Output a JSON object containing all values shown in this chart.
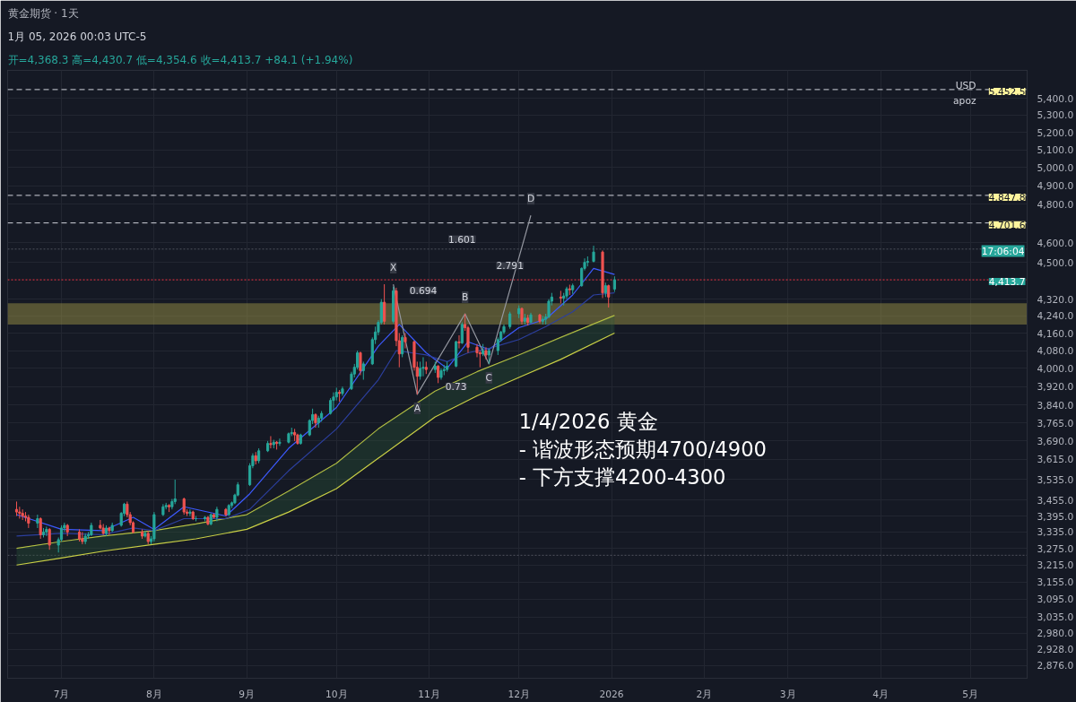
{
  "chart_data": {
    "type": "candlestick",
    "title": "黄金期货 · 1天",
    "subtitle": "开=4,368.3 高=4,430.7 低=4,354.6 收=4,413.7 +84.1 (+1.94%)",
    "annotations": [
      "1月 05, 2026 00:03 UTC-5",
      "USD",
      "apoz",
      "17:06:04",
      "1/4/2026 黄金\n- 谐波形态预期4700/4900\n- 下方支撑4200-4300",
      "1.601",
      "2.791",
      "0.694",
      "0.73",
      {
        "text": "X",
        "x": "2025-10-20",
        "y": 4392
      },
      {
        "text": "A",
        "x": "2025-10-28",
        "y": 3886
      },
      {
        "text": "B",
        "x": "2025-11-13",
        "y": 4250
      },
      {
        "text": "C",
        "x": "2025-11-21",
        "y": 4020
      },
      {
        "text": "D",
        "x": "2025-12-05",
        "y": 4741
      }
    ],
    "x": [
      "2025-06-16",
      "2025-06-17",
      "2025-06-18",
      "2025-06-19",
      "2025-06-20",
      "2025-06-23",
      "2025-06-24",
      "2025-06-25",
      "2025-06-26",
      "2025-06-27",
      "2025-06-30",
      "2025-07-01",
      "2025-07-02",
      "2025-07-03",
      "2025-07-07",
      "2025-07-08",
      "2025-07-09",
      "2025-07-10",
      "2025-07-11",
      "2025-07-14",
      "2025-07-15",
      "2025-07-16",
      "2025-07-17",
      "2025-07-18",
      "2025-07-21",
      "2025-07-22",
      "2025-07-23",
      "2025-07-24",
      "2025-07-25",
      "2025-07-28",
      "2025-07-29",
      "2025-07-30",
      "2025-07-31",
      "2025-08-01",
      "2025-08-04",
      "2025-08-05",
      "2025-08-06",
      "2025-08-07",
      "2025-08-08",
      "2025-08-11",
      "2025-08-12",
      "2025-08-13",
      "2025-08-14",
      "2025-08-15",
      "2025-08-18",
      "2025-08-19",
      "2025-08-20",
      "2025-08-21",
      "2025-08-22",
      "2025-08-25",
      "2025-08-26",
      "2025-08-27",
      "2025-08-28",
      "2025-08-29",
      "2025-09-02",
      "2025-09-03",
      "2025-09-04",
      "2025-09-05",
      "2025-09-08",
      "2025-09-09",
      "2025-09-10",
      "2025-09-11",
      "2025-09-12",
      "2025-09-15",
      "2025-09-16",
      "2025-09-17",
      "2025-09-18",
      "2025-09-19",
      "2025-09-22",
      "2025-09-23",
      "2025-09-24",
      "2025-09-25",
      "2025-09-26",
      "2025-09-29",
      "2025-09-30",
      "2025-10-01",
      "2025-10-02",
      "2025-10-03",
      "2025-10-06",
      "2025-10-07",
      "2025-10-08",
      "2025-10-09",
      "2025-10-10",
      "2025-10-13",
      "2025-10-14",
      "2025-10-15",
      "2025-10-16",
      "2025-10-17",
      "2025-10-20",
      "2025-10-21",
      "2025-10-22",
      "2025-10-23",
      "2025-10-24",
      "2025-10-27",
      "2025-10-28",
      "2025-10-29",
      "2025-10-30",
      "2025-10-31",
      "2025-11-03",
      "2025-11-04",
      "2025-11-05",
      "2025-11-06",
      "2025-11-07",
      "2025-11-10",
      "2025-11-11",
      "2025-11-12",
      "2025-11-13",
      "2025-11-14",
      "2025-11-17",
      "2025-11-18",
      "2025-11-19",
      "2025-11-20",
      "2025-11-21",
      "2025-11-24",
      "2025-11-25",
      "2025-11-26",
      "2025-11-28",
      "2025-12-01",
      "2025-12-02",
      "2025-12-03",
      "2025-12-04",
      "2025-12-05",
      "2025-12-08",
      "2025-12-09",
      "2025-12-10",
      "2025-12-11",
      "2025-12-12",
      "2025-12-15",
      "2025-12-16",
      "2025-12-17",
      "2025-12-18",
      "2025-12-19",
      "2025-12-22",
      "2025-12-23",
      "2025-12-24",
      "2025-12-26",
      "2025-12-29",
      "2025-12-30",
      "2025-12-31",
      "2026-01-02"
    ],
    "ohlc": [
      [
        3420,
        3450,
        3395,
        3410
      ],
      [
        3410,
        3430,
        3385,
        3405
      ],
      [
        3405,
        3420,
        3380,
        3395
      ],
      [
        3395,
        3410,
        3375,
        3390
      ],
      [
        3390,
        3400,
        3350,
        3368
      ],
      [
        3368,
        3400,
        3350,
        3385
      ],
      [
        3385,
        3390,
        3310,
        3325
      ],
      [
        3325,
        3350,
        3315,
        3335
      ],
      [
        3335,
        3355,
        3320,
        3345
      ],
      [
        3345,
        3350,
        3270,
        3287
      ],
      [
        3287,
        3315,
        3260,
        3307
      ],
      [
        3307,
        3360,
        3300,
        3350
      ],
      [
        3350,
        3370,
        3335,
        3360
      ],
      [
        3360,
        3365,
        3320,
        3335
      ],
      [
        3335,
        3345,
        3300,
        3310
      ],
      [
        3310,
        3335,
        3290,
        3300
      ],
      [
        3300,
        3330,
        3290,
        3320
      ],
      [
        3320,
        3335,
        3310,
        3325
      ],
      [
        3325,
        3370,
        3320,
        3360
      ],
      [
        3360,
        3380,
        3345,
        3350
      ],
      [
        3350,
        3365,
        3325,
        3330
      ],
      [
        3330,
        3360,
        3320,
        3350
      ],
      [
        3350,
        3355,
        3325,
        3340
      ],
      [
        3340,
        3370,
        3335,
        3360
      ],
      [
        3360,
        3410,
        3355,
        3405
      ],
      [
        3405,
        3445,
        3395,
        3440
      ],
      [
        3440,
        3450,
        3390,
        3400
      ],
      [
        3400,
        3410,
        3360,
        3370
      ],
      [
        3370,
        3375,
        3330,
        3335
      ],
      [
        3335,
        3345,
        3310,
        3320
      ],
      [
        3320,
        3340,
        3315,
        3330
      ],
      [
        3330,
        3340,
        3290,
        3300
      ],
      [
        3300,
        3320,
        3290,
        3310
      ],
      [
        3310,
        3410,
        3300,
        3400
      ],
      [
        3400,
        3440,
        3395,
        3430
      ],
      [
        3430,
        3445,
        3420,
        3435
      ],
      [
        3435,
        3440,
        3410,
        3430
      ],
      [
        3430,
        3460,
        3420,
        3450
      ],
      [
        3450,
        3535,
        3440,
        3460
      ],
      [
        3460,
        3465,
        3400,
        3410
      ],
      [
        3410,
        3420,
        3395,
        3405
      ],
      [
        3405,
        3420,
        3395,
        3410
      ],
      [
        3410,
        3415,
        3380,
        3385
      ],
      [
        3385,
        3395,
        3375,
        3385
      ],
      [
        3385,
        3395,
        3375,
        3390
      ],
      [
        3390,
        3395,
        3360,
        3365
      ],
      [
        3365,
        3405,
        3360,
        3400
      ],
      [
        3400,
        3405,
        3385,
        3390
      ],
      [
        3390,
        3430,
        3375,
        3420
      ],
      [
        3420,
        3425,
        3395,
        3400
      ],
      [
        3400,
        3440,
        3395,
        3435
      ],
      [
        3435,
        3450,
        3425,
        3445
      ],
      [
        3445,
        3480,
        3440,
        3475
      ],
      [
        3475,
        3525,
        3470,
        3515
      ],
      [
        3515,
        3600,
        3510,
        3590
      ],
      [
        3590,
        3640,
        3580,
        3630
      ],
      [
        3630,
        3645,
        3595,
        3610
      ],
      [
        3610,
        3660,
        3600,
        3650
      ],
      [
        3650,
        3690,
        3645,
        3680
      ],
      [
        3680,
        3710,
        3660,
        3675
      ],
      [
        3675,
        3695,
        3660,
        3685
      ],
      [
        3685,
        3690,
        3655,
        3680
      ],
      [
        3680,
        3700,
        3670,
        3685
      ],
      [
        3685,
        3725,
        3680,
        3720
      ],
      [
        3720,
        3745,
        3710,
        3725
      ],
      [
        3725,
        3740,
        3690,
        3715
      ],
      [
        3715,
        3720,
        3675,
        3680
      ],
      [
        3680,
        3720,
        3675,
        3715
      ],
      [
        3715,
        3780,
        3710,
        3775
      ],
      [
        3775,
        3825,
        3760,
        3800
      ],
      [
        3800,
        3805,
        3745,
        3765
      ],
      [
        3765,
        3795,
        3745,
        3785
      ],
      [
        3785,
        3815,
        3770,
        3805
      ],
      [
        3805,
        3870,
        3800,
        3860
      ],
      [
        3860,
        3895,
        3820,
        3875
      ],
      [
        3875,
        3915,
        3860,
        3895
      ],
      [
        3895,
        3905,
        3855,
        3890
      ],
      [
        3890,
        3920,
        3880,
        3910
      ],
      [
        3910,
        3985,
        3905,
        3975
      ],
      [
        3975,
        4020,
        3960,
        4005
      ],
      [
        4005,
        4080,
        3995,
        4070
      ],
      [
        4070,
        4075,
        3970,
        3990
      ],
      [
        3990,
        4030,
        3950,
        4020
      ],
      [
        4020,
        4140,
        4015,
        4130
      ],
      [
        4130,
        4190,
        4110,
        4165
      ],
      [
        4165,
        4220,
        4150,
        4210
      ],
      [
        4210,
        4320,
        4200,
        4305
      ],
      [
        4305,
        4392,
        4200,
        4215
      ],
      [
        4215,
        4380,
        4205,
        4360
      ],
      [
        4360,
        4375,
        4100,
        4125
      ],
      [
        4125,
        4160,
        4005,
        4065
      ],
      [
        4065,
        4150,
        4050,
        4140
      ],
      [
        4140,
        4160,
        4090,
        4120
      ],
      [
        4120,
        4125,
        3990,
        4005
      ],
      [
        4005,
        4030,
        3886,
        3965
      ],
      [
        3965,
        4030,
        3950,
        4000
      ],
      [
        4000,
        4050,
        3965,
        4005
      ],
      [
        4005,
        4030,
        3975,
        3995
      ],
      [
        3995,
        4030,
        3980,
        4010
      ],
      [
        4010,
        4015,
        3935,
        3960
      ],
      [
        3960,
        4000,
        3950,
        3990
      ],
      [
        3990,
        4015,
        3970,
        3995
      ],
      [
        3995,
        4030,
        3985,
        4010
      ],
      [
        4010,
        4125,
        4005,
        4120
      ],
      [
        4120,
        4150,
        4090,
        4115
      ],
      [
        4115,
        4210,
        4110,
        4200
      ],
      [
        4200,
        4250,
        4170,
        4185
      ],
      [
        4185,
        4195,
        4070,
        4095
      ],
      [
        4095,
        4110,
        4050,
        4070
      ],
      [
        4070,
        4080,
        4005,
        4065
      ],
      [
        4065,
        4110,
        4055,
        4080
      ],
      [
        4080,
        4095,
        4040,
        4060
      ],
      [
        4060,
        4090,
        4020,
        4080
      ],
      [
        4080,
        4140,
        4060,
        4130
      ],
      [
        4130,
        4170,
        4120,
        4165
      ],
      [
        4165,
        4200,
        4155,
        4190
      ],
      [
        4190,
        4260,
        4180,
        4250
      ],
      [
        4250,
        4290,
        4230,
        4275
      ],
      [
        4275,
        4280,
        4200,
        4215
      ],
      [
        4215,
        4250,
        4200,
        4230
      ],
      [
        4230,
        4245,
        4195,
        4210
      ],
      [
        4210,
        4255,
        4205,
        4245
      ],
      [
        4245,
        4250,
        4205,
        4215
      ],
      [
        4215,
        4240,
        4200,
        4225
      ],
      [
        4225,
        4250,
        4200,
        4235
      ],
      [
        4235,
        4320,
        4230,
        4310
      ],
      [
        4310,
        4350,
        4290,
        4330
      ],
      [
        4330,
        4360,
        4300,
        4325
      ],
      [
        4325,
        4350,
        4290,
        4335
      ],
      [
        4335,
        4380,
        4320,
        4370
      ],
      [
        4370,
        4390,
        4340,
        4365
      ],
      [
        4365,
        4395,
        4345,
        4385
      ],
      [
        4385,
        4475,
        4380,
        4470
      ],
      [
        4470,
        4520,
        4460,
        4500
      ],
      [
        4500,
        4530,
        4480,
        4505
      ],
      [
        4505,
        4584,
        4500,
        4552
      ],
      [
        4552,
        4560,
        4325,
        4350
      ],
      [
        4350,
        4400,
        4330,
        4385
      ],
      [
        4385,
        4390,
        4280,
        4330
      ],
      [
        4368.3,
        4430.7,
        4354.6,
        4413.7
      ]
    ],
    "series": [
      {
        "type": "line",
        "color": "#c9cf45",
        "x": [
          "2025-06-16",
          "2025-07-01",
          "2025-07-15",
          "2025-08-01",
          "2025-08-15",
          "2025-09-01",
          "2025-09-15",
          "2025-10-01",
          "2025-10-15",
          "2025-11-03",
          "2025-11-17",
          "2025-12-01",
          "2025-12-15",
          "2026-01-02"
        ],
        "values": [
          3275,
          3300,
          3320,
          3340,
          3365,
          3400,
          3490,
          3600,
          3740,
          3900,
          3985,
          4060,
          4140,
          4242
        ]
      },
      {
        "type": "line",
        "color": "#c9cf45",
        "x": [
          "2025-06-16",
          "2025-07-01",
          "2025-07-15",
          "2025-08-01",
          "2025-08-15",
          "2025-09-01",
          "2025-09-15",
          "2025-10-01",
          "2025-10-15",
          "2025-11-03",
          "2025-11-17",
          "2025-12-01",
          "2025-12-15",
          "2026-01-02"
        ],
        "values": [
          3215,
          3240,
          3265,
          3290,
          3310,
          3345,
          3410,
          3500,
          3620,
          3790,
          3880,
          3960,
          4040,
          4160
        ],
        "lower": [
          3215,
          3240,
          3265,
          3290,
          3310,
          3345,
          3410,
          3500,
          3620,
          3790,
          3880,
          3960,
          4040,
          4160
        ],
        "upper": [
          3275,
          3300,
          3320,
          3340,
          3365,
          3400,
          3490,
          3600,
          3740,
          3900,
          3985,
          4060,
          4140,
          4242
        ]
      },
      {
        "type": "line",
        "color": "#3d5afe",
        "x": [
          "2025-06-16",
          "2025-07-01",
          "2025-07-15",
          "2025-07-25",
          "2025-08-01",
          "2025-08-11",
          "2025-08-25",
          "2025-09-02",
          "2025-09-15",
          "2025-10-01",
          "2025-10-15",
          "2025-10-22",
          "2025-10-31",
          "2025-11-07",
          "2025-11-14",
          "2025-11-21",
          "2025-12-01",
          "2025-12-10",
          "2025-12-19",
          "2025-12-26",
          "2026-01-02"
        ],
        "values": [
          3400,
          3345,
          3340,
          3390,
          3345,
          3430,
          3395,
          3480,
          3660,
          3830,
          4100,
          4200,
          4070,
          4000,
          4120,
          4085,
          4185,
          4225,
          4340,
          4470,
          4440
        ]
      },
      {
        "type": "line",
        "color": "#2c3f9e",
        "x": [
          "2025-06-16",
          "2025-07-01",
          "2025-07-15",
          "2025-07-25",
          "2025-08-01",
          "2025-08-11",
          "2025-08-25",
          "2025-09-02",
          "2025-09-15",
          "2025-10-01",
          "2025-10-15",
          "2025-10-21",
          "2025-10-31",
          "2025-11-07",
          "2025-11-14",
          "2025-11-21",
          "2025-12-01",
          "2025-12-10",
          "2025-12-19",
          "2025-12-26",
          "2026-01-02"
        ],
        "values": [
          3320,
          3330,
          3325,
          3350,
          3340,
          3385,
          3385,
          3420,
          3570,
          3740,
          3950,
          4080,
          4060,
          4030,
          4070,
          4090,
          4130,
          4190,
          4260,
          4340,
          4350
        ]
      },
      {
        "type": "line",
        "color": "#9598a1",
        "x": [
          "2025-10-20",
          "2025-10-28",
          "2025-11-13",
          "2025-11-21",
          "2025-12-05"
        ],
        "values": [
          4392,
          3886,
          4250,
          4020,
          4741
        ]
      }
    ],
    "ref_lines": [
      {
        "axis": "y",
        "value": 5452.5,
        "label": "5,452.5",
        "color": "#d1d4dc",
        "line_style": "dashed"
      },
      {
        "axis": "y",
        "value": 4847.8,
        "label": "4,847.8",
        "color": "#d1d4dc",
        "line_style": "dashed"
      },
      {
        "axis": "y",
        "value": 4701.6,
        "label": "4,701.6",
        "color": "#d1d4dc",
        "line_style": "dashed"
      },
      {
        "axis": "y",
        "value": 4413.7,
        "label": "4,413.7",
        "color": "#f23645",
        "line_style": "dotted"
      },
      {
        "axis": "y",
        "value": 4567,
        "color": "#50535e",
        "line_style": "dotted"
      },
      {
        "axis": "y",
        "value": 3250,
        "color": "#50535e",
        "line_style": "dotted"
      }
    ],
    "bands": [
      {
        "axis": "y",
        "from": 4200,
        "to": 4300,
        "color": "#a79d4a"
      }
    ],
    "log": true,
    "grid": true,
    "xlim": [
      "2025-06-13",
      "2026-05-20"
    ],
    "xticks": [
      {
        "value": "2025-07-01",
        "label": "7月"
      },
      {
        "value": "2025-08-01",
        "label": "8月"
      },
      {
        "value": "2025-09-01",
        "label": "9月"
      },
      {
        "value": "2025-10-01",
        "label": "10月"
      },
      {
        "value": "2025-11-01",
        "label": "11月"
      },
      {
        "value": "2025-12-01",
        "label": "12月"
      },
      {
        "value": "2026-01-01",
        "label": "2026"
      },
      {
        "value": "2026-02-01",
        "label": "2月"
      },
      {
        "value": "2026-03-01",
        "label": "3月"
      },
      {
        "value": "2026-04-01",
        "label": "4月"
      },
      {
        "value": "2026-05-01",
        "label": "5月"
      }
    ],
    "ylim": [
      2835,
      5570
    ],
    "yticks": [
      {
        "value": 5400,
        "label": "5,400.0"
      },
      {
        "value": 5300,
        "label": "5,300.0"
      },
      {
        "value": 5200,
        "label": "5,200.0"
      },
      {
        "value": 5100,
        "label": "5,100.0"
      },
      {
        "value": 5000,
        "label": "5,000.0"
      },
      {
        "value": 4900,
        "label": "4,900.0"
      },
      {
        "value": 4800,
        "label": "4,800.0"
      },
      {
        "value": 4600,
        "label": "4,600.0"
      },
      {
        "value": 4500,
        "label": "4,500.0"
      },
      {
        "value": 4320,
        "label": "4,320.0"
      },
      {
        "value": 4240,
        "label": "4,240.0"
      },
      {
        "value": 4160,
        "label": "4,160.0"
      },
      {
        "value": 4080,
        "label": "4,080.0"
      },
      {
        "value": 4000,
        "label": "4,000.0"
      },
      {
        "value": 3920,
        "label": "3,920.0"
      },
      {
        "value": 3840,
        "label": "3,840.0"
      },
      {
        "value": 3765,
        "label": "3,765.0"
      },
      {
        "value": 3690,
        "label": "3,690.0"
      },
      {
        "value": 3615,
        "label": "3,615.0"
      },
      {
        "value": 3535,
        "label": "3,535.0"
      },
      {
        "value": 3455,
        "label": "3,455.0"
      },
      {
        "value": 3395,
        "label": "3,395.0"
      },
      {
        "value": 3335,
        "label": "3,335.0"
      },
      {
        "value": 3275,
        "label": "3,275.0"
      },
      {
        "value": 3215,
        "label": "3,215.0"
      },
      {
        "value": 3155,
        "label": "3,155.0"
      },
      {
        "value": 3095,
        "label": "3,095.0"
      },
      {
        "value": 3035,
        "label": "3,035.0"
      },
      {
        "value": 2980,
        "label": "2,980.0"
      },
      {
        "value": 2928,
        "label": "2,928.0"
      },
      {
        "value": 2876,
        "label": "2,876.0"
      }
    ]
  }
}
